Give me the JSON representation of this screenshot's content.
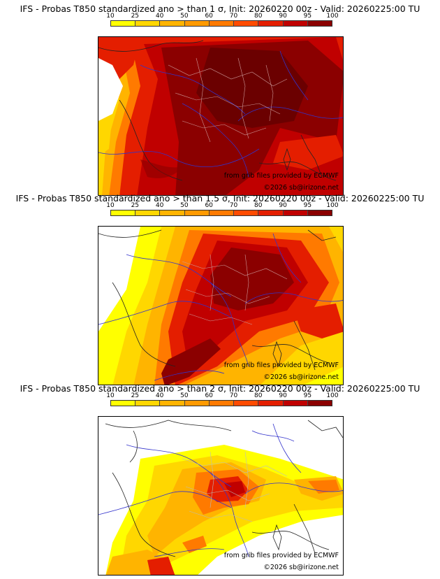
{
  "scale": {
    "labels": [
      "10",
      "25",
      "40",
      "50",
      "60",
      "70",
      "80",
      "90",
      "95",
      "100"
    ],
    "colors": [
      "#ffff00",
      "#ffd700",
      "#ffb400",
      "#ff9a00",
      "#ff7a00",
      "#ff4b00",
      "#e41e00",
      "#c00000",
      "#8b0000"
    ]
  },
  "credits": {
    "source": "from grib files provided by ECMWF",
    "copyright": "©2026 sb@irizone.net"
  },
  "panels": [
    {
      "title": "IFS - Probas T850  standardized ano > than 1 σ, Init: 20260220 00z - Valid: 20260225:00 TU"
    },
    {
      "title": "IFS - Probas T850  standardized ano > than 1.5 σ, Init: 20260220 00z - Valid: 20260225:00 TU"
    },
    {
      "title": "IFS - Probas T850  standardized ano > than 2 σ, Init: 20260220 00z - Valid: 20260225:00 TU"
    }
  ]
}
